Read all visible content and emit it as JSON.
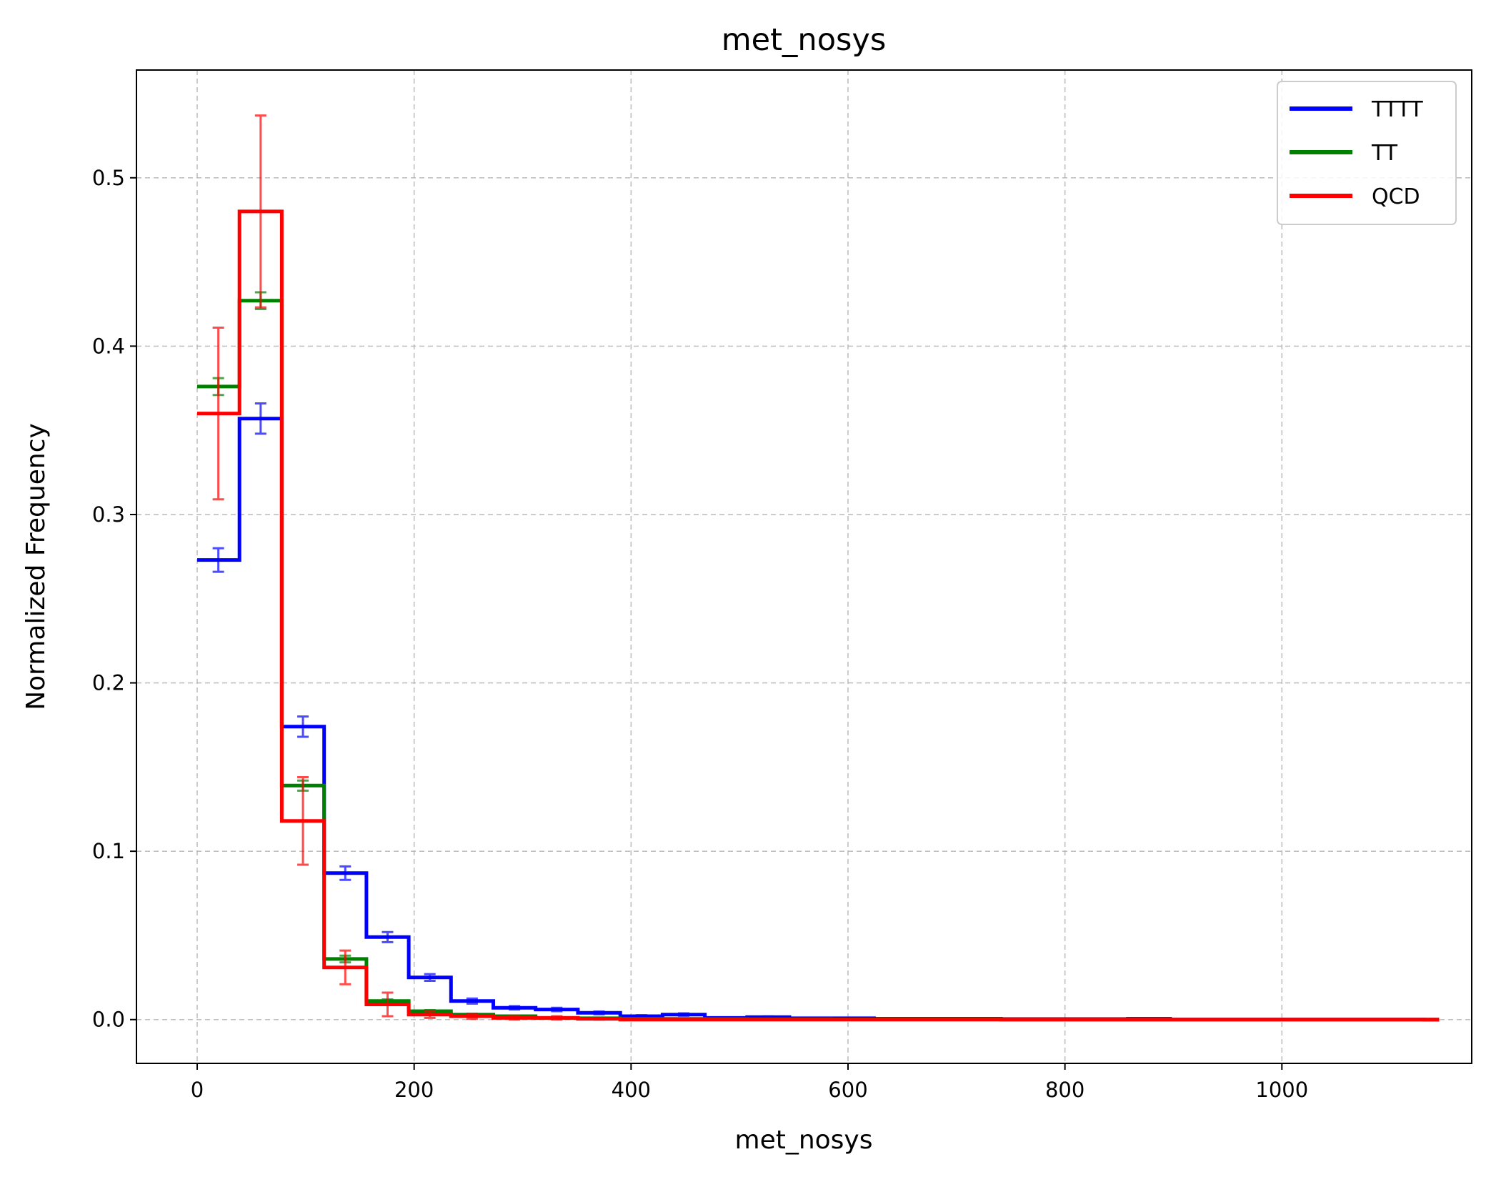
{
  "chart_data": {
    "type": "histogram-step",
    "title": "met_nosys",
    "xlabel": "met_nosys",
    "ylabel": "Normalized Frequency",
    "xlim": [
      -56,
      1175
    ],
    "ylim": [
      -0.026,
      0.564
    ],
    "x_ticks": [
      0,
      200,
      400,
      600,
      800,
      1000
    ],
    "x_tick_labels": [
      "0",
      "200",
      "400",
      "600",
      "800",
      "1000"
    ],
    "y_ticks": [
      0.0,
      0.1,
      0.2,
      0.3,
      0.4,
      0.5
    ],
    "y_tick_labels": [
      "0.0",
      "0.1",
      "0.2",
      "0.3",
      "0.4",
      "0.5"
    ],
    "grid": true,
    "legend_position": "top-right",
    "bin_edges": [
      0,
      39,
      78,
      117,
      156,
      195,
      234,
      273,
      312,
      351,
      390,
      429,
      468,
      507,
      546,
      585,
      624,
      663,
      702,
      741,
      780,
      819,
      858,
      897,
      936,
      975,
      1014,
      1053,
      1092,
      1131,
      1145
    ],
    "series": [
      {
        "name": "TTTT",
        "color": "#0000ff",
        "values": [
          0.273,
          0.357,
          0.174,
          0.087,
          0.049,
          0.025,
          0.011,
          0.007,
          0.006,
          0.004,
          0.002,
          0.003,
          0.001,
          0.0015,
          0.0008,
          0.0008,
          0.0005,
          0.0005,
          0.0005,
          0.0003,
          0.0003,
          0.0003,
          0.0005,
          0.0001,
          0.0001,
          0.0001,
          0.0001,
          0.0001,
          0.0001,
          0.0
        ],
        "errors": [
          0.007,
          0.009,
          0.006,
          0.004,
          0.003,
          0.002,
          0.0015,
          0.001,
          0.001,
          0.0008,
          0.0006,
          0.0007,
          0.0004,
          0.0004,
          0.0003,
          0.0003,
          0.0002,
          0.0002,
          0.0002,
          0.0002,
          0.0002,
          0.0002,
          0.0002,
          0.0001,
          0.0001,
          0.0001,
          0.0001,
          0.0001,
          0.0001,
          0.0
        ]
      },
      {
        "name": "TT",
        "color": "#008000",
        "values": [
          0.376,
          0.427,
          0.139,
          0.036,
          0.011,
          0.005,
          0.003,
          0.002,
          0.001,
          0.0008,
          0.0005,
          0.0004,
          0.0003,
          0.0002,
          0.0002,
          0.0001,
          0.0001,
          0.0001,
          0.0001,
          0.0,
          0.0,
          0.0,
          0.0,
          0.0,
          0.0,
          0.0,
          0.0,
          0.0,
          0.0,
          0.0
        ],
        "errors": [
          0.005,
          0.005,
          0.003,
          0.002,
          0.001,
          0.0006,
          0.0005,
          0.0004,
          0.0003,
          0.0003,
          0.0002,
          0.0002,
          0.0002,
          0.0001,
          0.0001,
          0.0001,
          0.0001,
          0.0001,
          0.0001,
          0.0,
          0.0,
          0.0,
          0.0,
          0.0,
          0.0,
          0.0,
          0.0,
          0.0,
          0.0,
          0.0
        ]
      },
      {
        "name": "QCD",
        "color": "#ff0000",
        "values": [
          0.36,
          0.48,
          0.118,
          0.031,
          0.009,
          0.003,
          0.002,
          0.001,
          0.001,
          0.0005,
          0.0,
          0.0,
          0.0,
          0.0,
          0.0,
          0.0,
          0.0,
          0.0,
          0.0,
          0.0,
          0.0,
          0.0,
          0.0,
          0.0,
          0.0,
          0.0,
          0.0,
          0.0,
          0.0,
          0.0
        ],
        "errors": [
          0.051,
          0.057,
          0.026,
          0.01,
          0.007,
          0.002,
          0.0015,
          0.001,
          0.001,
          0.0005,
          0.0,
          0.0,
          0.0,
          0.0,
          0.0,
          0.0,
          0.0,
          0.0,
          0.0,
          0.0,
          0.0,
          0.0,
          0.0,
          0.0,
          0.0,
          0.0,
          0.0,
          0.0,
          0.0,
          0.0
        ]
      }
    ]
  }
}
